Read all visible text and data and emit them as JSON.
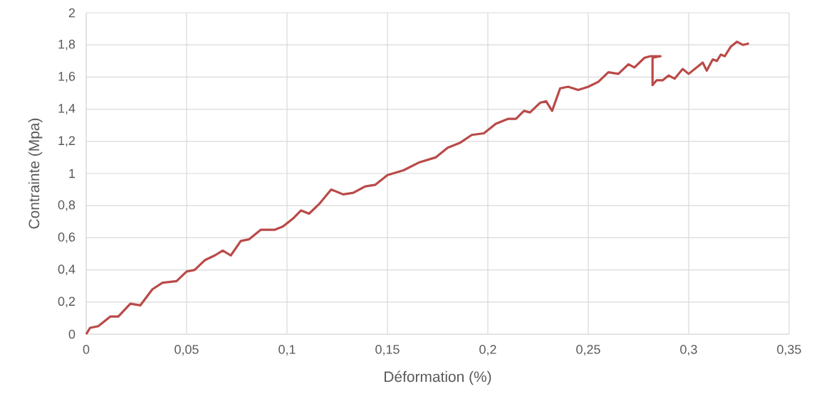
{
  "chart_data": {
    "type": "line",
    "xlabel": "Déformation (%)",
    "ylabel": "Contrainte (Mpa)",
    "xlim": [
      0,
      0.35
    ],
    "ylim": [
      0,
      2
    ],
    "xticks": [
      {
        "value": 0,
        "label": "0"
      },
      {
        "value": 0.05,
        "label": "0,05"
      },
      {
        "value": 0.1,
        "label": "0,1"
      },
      {
        "value": 0.15,
        "label": "0,15"
      },
      {
        "value": 0.2,
        "label": "0,2"
      },
      {
        "value": 0.25,
        "label": "0,25"
      },
      {
        "value": 0.3,
        "label": "0,3"
      },
      {
        "value": 0.35,
        "label": "0,35"
      }
    ],
    "yticks": [
      {
        "value": 0,
        "label": "0"
      },
      {
        "value": 0.2,
        "label": "0,2"
      },
      {
        "value": 0.4,
        "label": "0,4"
      },
      {
        "value": 0.6,
        "label": "0,6"
      },
      {
        "value": 0.8,
        "label": "0,8"
      },
      {
        "value": 1,
        "label": "1"
      },
      {
        "value": 1.2,
        "label": "1,2"
      },
      {
        "value": 1.4,
        "label": "1,4"
      },
      {
        "value": 1.6,
        "label": "1,6"
      },
      {
        "value": 1.8,
        "label": "1,8"
      },
      {
        "value": 2,
        "label": "2"
      }
    ],
    "grid": true,
    "marker": "none",
    "line_style": "solid",
    "series": [
      {
        "color": "#b94a48",
        "x": [
          0,
          0.002,
          0.006,
          0.012,
          0.016,
          0.022,
          0.027,
          0.033,
          0.038,
          0.045,
          0.05,
          0.054,
          0.059,
          0.064,
          0.068,
          0.072,
          0.077,
          0.081,
          0.087,
          0.094,
          0.098,
          0.103,
          0.107,
          0.111,
          0.116,
          0.122,
          0.128,
          0.133,
          0.139,
          0.144,
          0.15,
          0.158,
          0.166,
          0.174,
          0.18,
          0.186,
          0.192,
          0.198,
          0.204,
          0.21,
          0.214,
          0.218,
          0.221,
          0.226,
          0.229,
          0.232,
          0.236,
          0.24,
          0.245,
          0.25,
          0.255,
          0.26,
          0.265,
          0.27,
          0.273,
          0.278,
          0.281,
          0.286,
          0.282,
          0.282,
          0.284,
          0.287,
          0.29,
          0.293,
          0.297,
          0.3,
          0.305,
          0.307,
          0.309,
          0.312,
          0.314,
          0.316,
          0.318,
          0.321,
          0.324,
          0.327,
          0.33
        ],
        "values": [
          0,
          0.04,
          0.05,
          0.11,
          0.11,
          0.19,
          0.18,
          0.28,
          0.32,
          0.33,
          0.39,
          0.4,
          0.46,
          0.49,
          0.52,
          0.49,
          0.58,
          0.59,
          0.65,
          0.65,
          0.67,
          0.72,
          0.77,
          0.75,
          0.81,
          0.9,
          0.87,
          0.88,
          0.92,
          0.93,
          0.99,
          1.02,
          1.07,
          1.1,
          1.16,
          1.19,
          1.24,
          1.25,
          1.31,
          1.34,
          1.34,
          1.39,
          1.38,
          1.44,
          1.45,
          1.39,
          1.53,
          1.54,
          1.52,
          1.54,
          1.57,
          1.63,
          1.62,
          1.68,
          1.66,
          1.72,
          1.73,
          1.73,
          1.72,
          1.55,
          1.58,
          1.58,
          1.61,
          1.59,
          1.65,
          1.62,
          1.67,
          1.69,
          1.64,
          1.71,
          1.7,
          1.74,
          1.73,
          1.79,
          1.82,
          1.8,
          1.81
        ]
      }
    ]
  }
}
